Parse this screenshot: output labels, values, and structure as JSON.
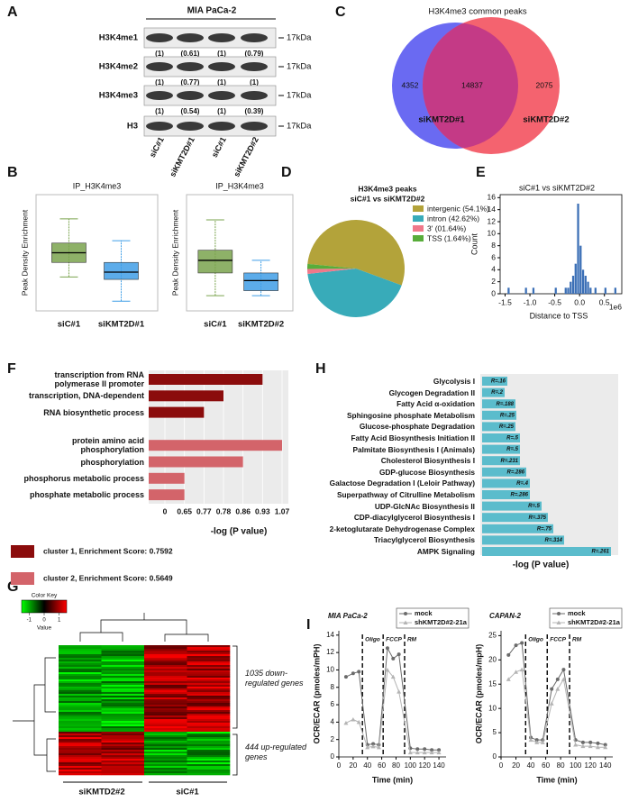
{
  "panel_labels": [
    "A",
    "B",
    "C",
    "D",
    "E",
    "F",
    "G",
    "H",
    "I"
  ],
  "blot": {
    "cell_line": "MIA PaCa-2",
    "marker": "17kDa",
    "lanes": [
      "siC#1",
      "siKMT2D#1",
      "siC#1",
      "siKMT2D#2"
    ],
    "rows": [
      {
        "name": "H3K4me1",
        "quant": [
          "(1)",
          "(0.61)",
          "(1)",
          "(0.79)"
        ]
      },
      {
        "name": "H3K4me2",
        "quant": [
          "(1)",
          "(0.77)",
          "(1)",
          "(1)"
        ]
      },
      {
        "name": "H3K4me3",
        "quant": [
          "(1)",
          "(0.54)",
          "(1)",
          "(0.39)"
        ]
      },
      {
        "name": "H3"
      }
    ]
  },
  "venn": {
    "title": "H3K4me3 common peaks",
    "only_left": 4352,
    "shared": 14837,
    "only_right": 2075,
    "left_label": "siKMT2D#1",
    "right_label": "siKMT2D#2"
  },
  "boxplots": [
    {
      "type": "box",
      "title": "IP_H3K4me3",
      "ylabel": "Peak Density Enrichment",
      "ylim": [
        14,
        38
      ],
      "groups": [
        {
          "name": "siC#1",
          "color": "#7aa34e",
          "whisker_low": 21,
          "q1": 24,
          "median": 26,
          "q3": 28,
          "whisker_high": 33
        },
        {
          "name": "siKMT2D#1",
          "color": "#3f9ee6",
          "whisker_low": 16,
          "q1": 20.5,
          "median": 22,
          "q3": 24,
          "whisker_high": 28.5
        }
      ]
    },
    {
      "type": "box",
      "title": "IP_H3K4me3",
      "ylabel": "Peak Density Enrichment",
      "ylim": [
        15,
        38
      ],
      "groups": [
        {
          "name": "siC#1",
          "color": "#7aa34e",
          "whisker_low": 18,
          "q1": 22.5,
          "median": 25,
          "q3": 27,
          "whisker_high": 33
        },
        {
          "name": "siKMT2D#2",
          "color": "#3f9ee6",
          "whisker_low": 18,
          "q1": 19,
          "median": 21,
          "q3": 22.5,
          "whisker_high": 25
        }
      ]
    }
  ],
  "pie": {
    "type": "pie",
    "title": "H3K4me3 peaks",
    "subtitle": "siC#1 vs siKMT2D#2",
    "categories": [
      "intergenic (54.1%)",
      "intron (42.62%)",
      "3' (01.64%)",
      "TSS (1.64%)"
    ],
    "values": [
      54.1,
      42.62,
      1.64,
      1.64
    ],
    "colors": [
      "#b3a33a",
      "#38abb9",
      "#f0788a",
      "#58ad3a"
    ]
  },
  "histogram": {
    "type": "histogram",
    "title": "siC#1 vs siKMT2D#2",
    "xlabel": "Distance to TSS",
    "ylabel": "Count",
    "x_multiplier": "1e6",
    "color": "#3b6fb6",
    "bins": [
      -1.5,
      -1.45,
      -1.4,
      -1.35,
      -1.3,
      -1.25,
      -1.2,
      -1.15,
      -1.1,
      -1.05,
      -1.0,
      -0.95,
      -0.9,
      -0.85,
      -0.8,
      -0.75,
      -0.7,
      -0.65,
      -0.6,
      -0.55,
      -0.5,
      -0.45,
      -0.4,
      -0.35,
      -0.3,
      -0.25,
      -0.2,
      -0.15,
      -0.1,
      -0.05,
      0.0,
      0.05,
      0.1,
      0.15,
      0.2,
      0.25,
      0.3,
      0.35,
      0.4,
      0.45,
      0.5,
      0.55,
      0.6,
      0.65,
      0.7,
      0.75
    ],
    "counts": [
      0,
      1,
      0,
      0,
      0,
      0,
      0,
      0,
      1,
      0,
      0,
      1,
      0,
      0,
      0,
      0,
      0,
      0,
      0,
      0,
      1,
      0,
      0,
      0,
      1,
      1,
      2,
      3,
      5,
      15,
      8,
      4,
      3,
      2,
      1,
      0,
      1,
      0,
      0,
      0,
      1,
      0,
      0,
      0,
      1
    ],
    "xlim": [
      -1.6,
      0.85
    ],
    "ylim": [
      0,
      16.5
    ],
    "xticks": [
      -1.5,
      {
        "value": -1.0,
        "label": "-1.0"
      },
      -0.5,
      {
        "value": 0.0,
        "label": "0.0"
      },
      0.5
    ],
    "yticks": [
      0,
      2,
      4,
      6,
      8,
      10,
      12,
      14,
      16
    ]
  },
  "go_bar": {
    "type": "bar",
    "orientation": "horizontal",
    "xlabel": "-log (P value)",
    "categories": [
      "transcription from RNA polymerase II promoter",
      "transcription, DNA-dependent",
      "RNA biosynthetic process",
      null,
      "protein amino acid phosphorylation",
      "phosphorylation",
      "phosphorus metabolic process",
      "phosphate metabolic process"
    ],
    "series": [
      {
        "name": "cluster 1, Enrichment Score: 0.7592",
        "color": "#8b0c0c",
        "values": [
          0.93,
          0.78,
          0.77,
          null,
          null,
          null,
          null,
          null
        ]
      },
      {
        "name": "cluster 2, Enrichment Score: 0.5649",
        "color": "#d3646a",
        "values": [
          null,
          null,
          null,
          null,
          1.07,
          0.86,
          0.65,
          0.65
        ]
      }
    ],
    "xticks": [
      0,
      0.65,
      0.77,
      0.78,
      0.86,
      0.93,
      1.07
    ],
    "grid": true
  },
  "pathway_bar": {
    "type": "bar",
    "orientation": "horizontal",
    "xlabel": "-log (P value)",
    "color": "#5bbccc",
    "xlim": [
      0,
      14.5
    ],
    "categories": [
      "Glycolysis I",
      "Glycogen Degradation II",
      "Fatty Acid α-oxidation",
      "Sphingosine phosphate Metabolism",
      "Glucose-phosphate Degradation",
      "Fatty Acid Biosynthesis Initiation II",
      "Palmitate Biosynthesis I (Animals)",
      "Cholesterol Biosynthesis I",
      "GDP-glucose Biosynthesis",
      "Galactose Degradation I (Leloir Pathway)",
      "Superpathway of Citrulline Metabolism",
      "UDP-GlcNAc Biosynthesis II",
      "CDP-diacylglycerol Biosynthesis I",
      "2-ketoglutarate Dehydrogenase Complex",
      "Triacylglycerol Biosynthesis",
      "AMPK Signaling"
    ],
    "values": [
      2.8,
      2.5,
      3.7,
      3.8,
      3.7,
      4.2,
      4.2,
      4.2,
      4.9,
      5.3,
      5.3,
      6.6,
      7.3,
      7.9,
      9.1,
      14.3
    ],
    "annotations": [
      "R=.16",
      "R=.2",
      "R=.188",
      "R=.25",
      "R=.25",
      "R=.5",
      "R=.5",
      "R=.231",
      "R=.286",
      "R=.4",
      "R=.286",
      "R=.5",
      "R=.375",
      "R=.75",
      "R=.314",
      "R=.261"
    ]
  },
  "heatmap": {
    "color_key_title": "Color Key",
    "color_key_label": "Value",
    "color_key_lim": [
      -1.5,
      1.5
    ],
    "color_key_ticks": [
      -1,
      0,
      1
    ],
    "columns": [
      "siKMTD2#2",
      "siC#1"
    ],
    "groups": [
      "1035 down-regulated genes",
      "444 up-regulated genes"
    ]
  },
  "seahorse": [
    {
      "type": "line",
      "title": "MIA PaCa-2",
      "ylabel": "OCR/ECAR (pmoles/mPH)",
      "xlabel": "Time (min)",
      "x": [
        10,
        20,
        28,
        40,
        48,
        56,
        68,
        76,
        84,
        100,
        110,
        120,
        130,
        140
      ],
      "series": [
        {
          "name": "mock",
          "color": "#6b6b6b",
          "marker": "circle",
          "values": [
            9.2,
            9.6,
            9.8,
            1.4,
            1.5,
            1.4,
            12.5,
            11.3,
            11.8,
            1.0,
            0.9,
            0.9,
            0.8,
            0.8
          ]
        },
        {
          "name": "shKMT2D#2-21a",
          "color": "#b4b4b4",
          "marker": "triangle",
          "values": [
            3.9,
            4.3,
            4.0,
            1.1,
            1.2,
            1.1,
            10.0,
            9.2,
            7.5,
            0.5,
            0.5,
            0.5,
            0.5,
            0.5
          ]
        }
      ],
      "xlim": [
        0,
        150
      ],
      "xticks": [
        0,
        20,
        40,
        60,
        80,
        100,
        120,
        140
      ],
      "ylim": [
        0,
        14.5
      ],
      "yticks": [
        0,
        2,
        4,
        6,
        8,
        10,
        12,
        14
      ],
      "injections": [
        {
          "label": "Oligo",
          "x": 33
        },
        {
          "label": "FCCP",
          "x": 62
        },
        {
          "label": "RM",
          "x": 92
        }
      ]
    },
    {
      "type": "line",
      "title": "CAPAN-2",
      "ylabel": "OCR/ECAR (pmoles/mpH)",
      "xlabel": "Time (min)",
      "x": [
        10,
        20,
        28,
        40,
        48,
        56,
        68,
        76,
        84,
        100,
        110,
        120,
        130,
        140
      ],
      "series": [
        {
          "name": "mock",
          "color": "#6b6b6b",
          "marker": "circle",
          "values": [
            21,
            23,
            23.5,
            4,
            3.5,
            3.5,
            14,
            16,
            18,
            3.5,
            3,
            3,
            2.8,
            2.5
          ]
        },
        {
          "name": "shKMT2D#2-21a",
          "color": "#b4b4b4",
          "marker": "triangle",
          "values": [
            16,
            17.5,
            18,
            3.5,
            3,
            3,
            11,
            14,
            16,
            2.5,
            2.2,
            2.2,
            2,
            2
          ]
        }
      ],
      "xlim": [
        0,
        150
      ],
      "xticks": [
        0,
        20,
        40,
        60,
        80,
        100,
        120,
        140
      ],
      "ylim": [
        0,
        26
      ],
      "yticks": [
        0,
        5,
        10,
        15,
        20,
        25
      ],
      "injections": [
        {
          "label": "Oligo",
          "x": 33
        },
        {
          "label": "FCCP",
          "x": 62
        },
        {
          "label": "RM",
          "x": 92
        }
      ]
    }
  ]
}
